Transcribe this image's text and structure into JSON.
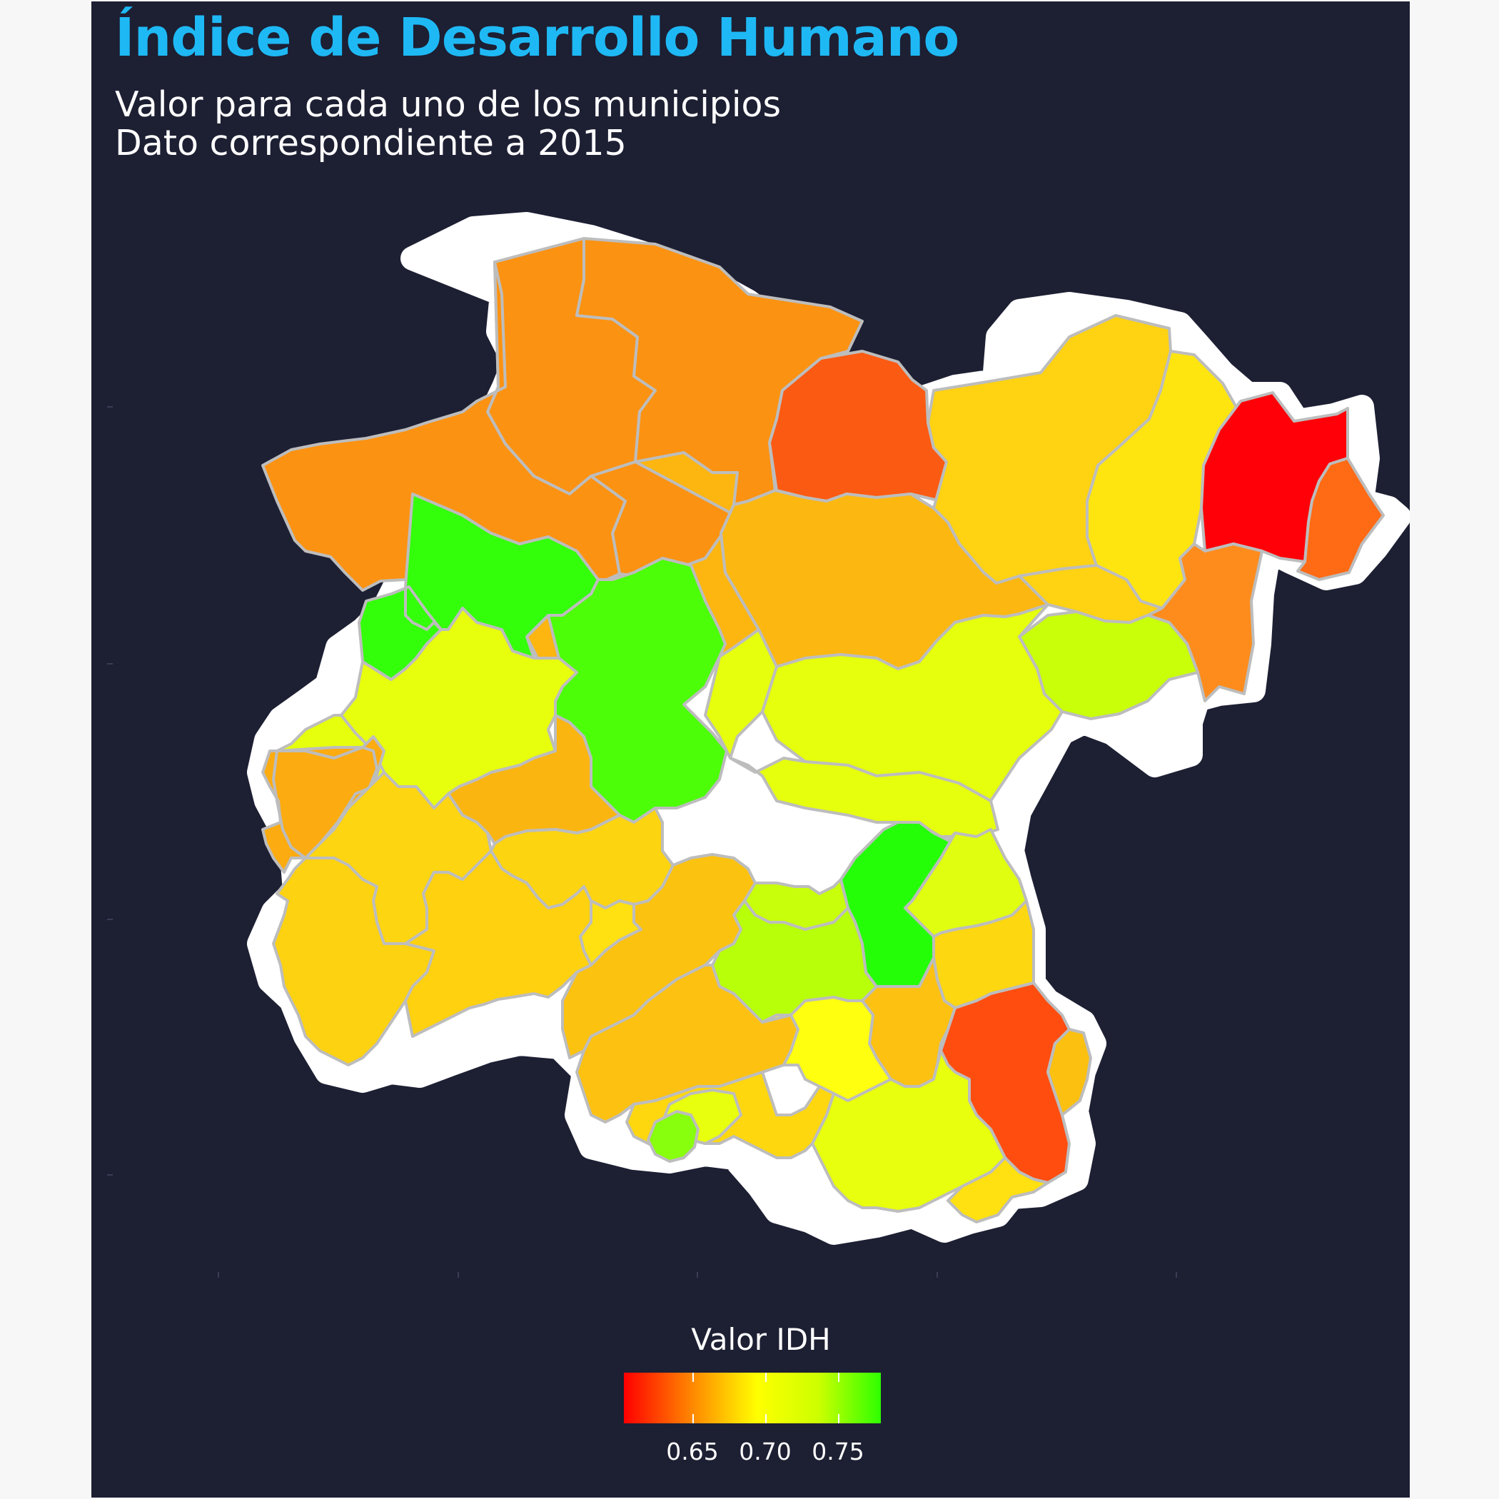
{
  "title": "Índice de Desarrollo Humano",
  "subtitle_lines": [
    "Valor para cada uno de los municipios",
    "Dato correspondiente a 2015"
  ],
  "legend": {
    "title": "Valor IDH",
    "tick_labels": [
      "0.65",
      "0.70",
      "0.75"
    ],
    "range": [
      0.615,
      0.79
    ],
    "gradient_colors": [
      "#ff0000",
      "#ff8a00",
      "#ffff00",
      "#ccff00",
      "#2eff00"
    ]
  },
  "colors": {
    "background": "#1d1f33",
    "title": "#1eb9f5",
    "text": "#ffffff",
    "state_outline": "#ffffff",
    "municipal_border": "#bdbdbd"
  }
}
